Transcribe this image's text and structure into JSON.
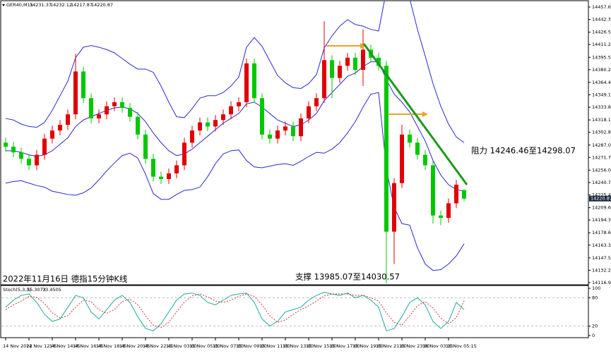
{
  "chart_data": [
    {
      "type": "candlestick",
      "symbol": "GER40,M15",
      "quote": [
        14231.37,
        14232.12,
        14217.87,
        14220.87
      ],
      "categories": [
        "14 Nov 2022",
        null,
        null,
        "14 Nov 12:45",
        null,
        null,
        "14 Nov 14:45",
        null,
        null,
        "14 Nov 16:45",
        null,
        null,
        "14 Nov 18:45",
        null,
        null,
        "14 Nov 20:45",
        null,
        null,
        "14 Nov 22:45",
        null,
        null,
        "15 Nov 03:00",
        null,
        null,
        "15 Nov 05:00",
        null,
        null,
        "15 Nov 07:00",
        null,
        null,
        "15 Nov 09:00",
        null,
        null,
        "15 Nov 11:00",
        null,
        null,
        "15 Nov 13:00",
        null,
        null,
        "15 Nov 15:00",
        null,
        null,
        "15 Nov 17:00",
        null,
        null,
        "15 Nov 19:00",
        null,
        null,
        "15 Nov 21:00",
        null,
        null,
        "15 Nov 23:00",
        null,
        null,
        "16 Nov 03:15",
        null,
        null,
        "16 Nov 05:15",
        null,
        null
      ],
      "open": [
        14290,
        14285,
        14278,
        14270,
        14262,
        14275,
        14295,
        14305,
        14312,
        14325,
        14378,
        14345,
        14320,
        14325,
        14335,
        14340,
        14333,
        14322,
        14300,
        14270,
        14248,
        14245,
        14252,
        14262,
        14290,
        14305,
        14315,
        14310,
        14318,
        14325,
        14335,
        14340,
        14388,
        14345,
        14300,
        14295,
        14305,
        14310,
        14298,
        14320,
        14335,
        14345,
        14392,
        14370,
        14385,
        14395,
        14380,
        14405,
        14395,
        14385,
        14180,
        14240,
        14300,
        14290,
        14275,
        14262,
        14200,
        14197,
        14215,
        14231.37
      ],
      "high": [
        14296,
        14291,
        14284,
        14276,
        14281,
        14301,
        14311,
        14318,
        14331,
        14400,
        14384,
        14351,
        14331,
        14341,
        14346,
        14346,
        14339,
        14328,
        14306,
        14276,
        14254,
        14258,
        14268,
        14296,
        14311,
        14321,
        14321,
        14324,
        14331,
        14341,
        14346,
        14394,
        14394,
        14351,
        14306,
        14311,
        14316,
        14316,
        14326,
        14341,
        14351,
        14440,
        14398,
        14391,
        14401,
        14401,
        14430,
        14411,
        14401,
        14391,
        14246,
        14312,
        14306,
        14296,
        14281,
        14268,
        14206,
        14221,
        14244,
        14232.12
      ],
      "low": [
        14279,
        14272,
        14264,
        14256,
        14256,
        14269,
        14289,
        14299,
        14306,
        14319,
        14339,
        14314,
        14314,
        14319,
        14329,
        14327,
        14316,
        14294,
        14264,
        14242,
        14239,
        14239,
        14246,
        14256,
        14284,
        14299,
        14304,
        14304,
        14312,
        14319,
        14329,
        14334,
        14339,
        14294,
        14289,
        14289,
        14299,
        14292,
        14292,
        14314,
        14329,
        14339,
        14345,
        14364,
        14379,
        14374,
        14360,
        14389,
        14379,
        14116,
        14140,
        14234,
        14284,
        14269,
        14256,
        14190,
        14188,
        14191,
        14209,
        14217.87
      ],
      "close": [
        14285,
        14278,
        14270,
        14262,
        14275,
        14295,
        14305,
        14312,
        14325,
        14378,
        14345,
        14320,
        14325,
        14335,
        14340,
        14333,
        14322,
        14300,
        14270,
        14248,
        14245,
        14252,
        14262,
        14290,
        14305,
        14315,
        14310,
        14318,
        14325,
        14335,
        14340,
        14388,
        14345,
        14300,
        14295,
        14305,
        14310,
        14298,
        14320,
        14335,
        14345,
        14392,
        14370,
        14385,
        14395,
        14380,
        14405,
        14395,
        14385,
        14180,
        14240,
        14300,
        14290,
        14275,
        14262,
        14200,
        14197,
        14215,
        14238,
        14220.87
      ],
      "up_color": "#e00000",
      "down_color": "#00c800",
      "bands": {
        "color": "#2a2ad0",
        "upper": [
          14320,
          14318,
          14313,
          14310,
          14309,
          14315,
          14330,
          14348,
          14366,
          14395,
          14408,
          14410,
          14408,
          14405,
          14401,
          14394,
          14387,
          14381,
          14381,
          14377,
          14360,
          14340,
          14322,
          14321,
          14332,
          14345,
          14348,
          14348,
          14352,
          14360,
          14371,
          14408,
          14420,
          14409,
          14391,
          14373,
          14364,
          14358,
          14357,
          14363,
          14374,
          14407,
          14422,
          14434,
          14442,
          14436,
          14434,
          14430,
          14428,
          14478,
          14490,
          14490,
          14468,
          14430,
          14397,
          14363,
          14335,
          14313,
          14297,
          14290
        ],
        "middle": [
          14280,
          14280,
          14278,
          14275,
          14273,
          14275,
          14280,
          14288,
          14296,
          14310,
          14318,
          14322,
          14326,
          14330,
          14333,
          14334,
          14332,
          14326,
          14316,
          14302,
          14290,
          14280,
          14274,
          14276,
          14282,
          14290,
          14298,
          14306,
          14314,
          14320,
          14326,
          14338,
          14340,
          14334,
          14326,
          14318,
          14314,
          14310,
          14312,
          14318,
          14326,
          14342,
          14352,
          14362,
          14372,
          14376,
          14384,
          14390,
          14390,
          14368,
          14350,
          14340,
          14328,
          14310,
          14292,
          14268,
          14250,
          14238,
          14232,
          14230
        ],
        "lower": [
          14240,
          14242,
          14243,
          14240,
          14237,
          14235,
          14230,
          14228,
          14226,
          14225,
          14228,
          14234,
          14244,
          14255,
          14265,
          14274,
          14277,
          14271,
          14251,
          14227,
          14220,
          14220,
          14226,
          14231,
          14232,
          14235,
          14248,
          14264,
          14276,
          14280,
          14281,
          14268,
          14260,
          14259,
          14261,
          14263,
          14264,
          14262,
          14267,
          14273,
          14278,
          14277,
          14282,
          14290,
          14302,
          14316,
          14334,
          14350,
          14352,
          14258,
          14210,
          14190,
          14188,
          14160,
          14140,
          14132,
          14133,
          14140,
          14150,
          14165
        ]
      },
      "ylim": [
        14114.3,
        14464.6
      ],
      "yticks": [
        {
          "value": 14457.6,
          "label": "14457.60"
        },
        {
          "value": 14442.3,
          "label": "14442.30"
        },
        14426.55,
        14411.25,
        {
          "value": 14395.5,
          "label": "14395.50"
        },
        {
          "value": 14380.2,
          "label": "14380.20"
        },
        14364.45,
        14349.15,
        14333.85,
        {
          "value": 14318.1,
          "label": "14318.10"
        },
        {
          "value": 14302.8,
          "label": "14302.80"
        },
        14287.05,
        14271.75,
        {
          "value": 14256,
          "label": "14256.00"
        },
        {
          "value": 14240.7,
          "label": "14240.70"
        },
        {
          "value": 14225.4,
          "label": "14225.40"
        },
        14209.65,
        14194.35,
        {
          "value": 14178.6,
          "label": "14178.60"
        },
        {
          "value": 14163.3,
          "label": "14163.30"
        },
        14147.55,
        14132.25,
        14116.95
      ],
      "last_price": 14220.87,
      "annotations": {
        "caption": "2022年11月16日 德指15分钟K线",
        "support": "支撑 13985.07至14030.57",
        "resistance": "阻力 14246.46至14298.07"
      }
    },
    {
      "type": "line",
      "title": "Stoch(5,3,3)",
      "readout": [
        55.3073,
        73.4505
      ],
      "series": [
        {
          "color": "#20a8a0",
          "values": [
            60,
            75,
            85,
            88,
            70,
            45,
            30,
            35,
            60,
            85,
            80,
            50,
            35,
            55,
            75,
            85,
            70,
            40,
            15,
            10,
            25,
            50,
            75,
            88,
            90,
            85,
            70,
            65,
            75,
            85,
            88,
            90,
            70,
            35,
            20,
            30,
            50,
            55,
            60,
            75,
            85,
            92,
            88,
            85,
            90,
            80,
            85,
            75,
            60,
            10,
            15,
            40,
            70,
            80,
            65,
            30,
            15,
            30,
            70,
            55.3073
          ]
        },
        {
          "color": "#e03030",
          "dashed": true,
          "values": [
            55,
            65,
            73,
            83,
            81,
            68,
            48,
            37,
            42,
            60,
            75,
            72,
            55,
            47,
            55,
            72,
            77,
            65,
            42,
            22,
            17,
            28,
            50,
            71,
            84,
            88,
            82,
            73,
            70,
            75,
            83,
            88,
            83,
            65,
            42,
            28,
            33,
            45,
            55,
            63,
            73,
            84,
            88,
            88,
            88,
            85,
            85,
            80,
            73,
            48,
            28,
            22,
            42,
            63,
            72,
            58,
            37,
            25,
            38,
            73.4505
          ]
        }
      ],
      "ylim": [
        0,
        100
      ],
      "yticks": [
        100,
        80,
        20,
        0
      ]
    }
  ]
}
